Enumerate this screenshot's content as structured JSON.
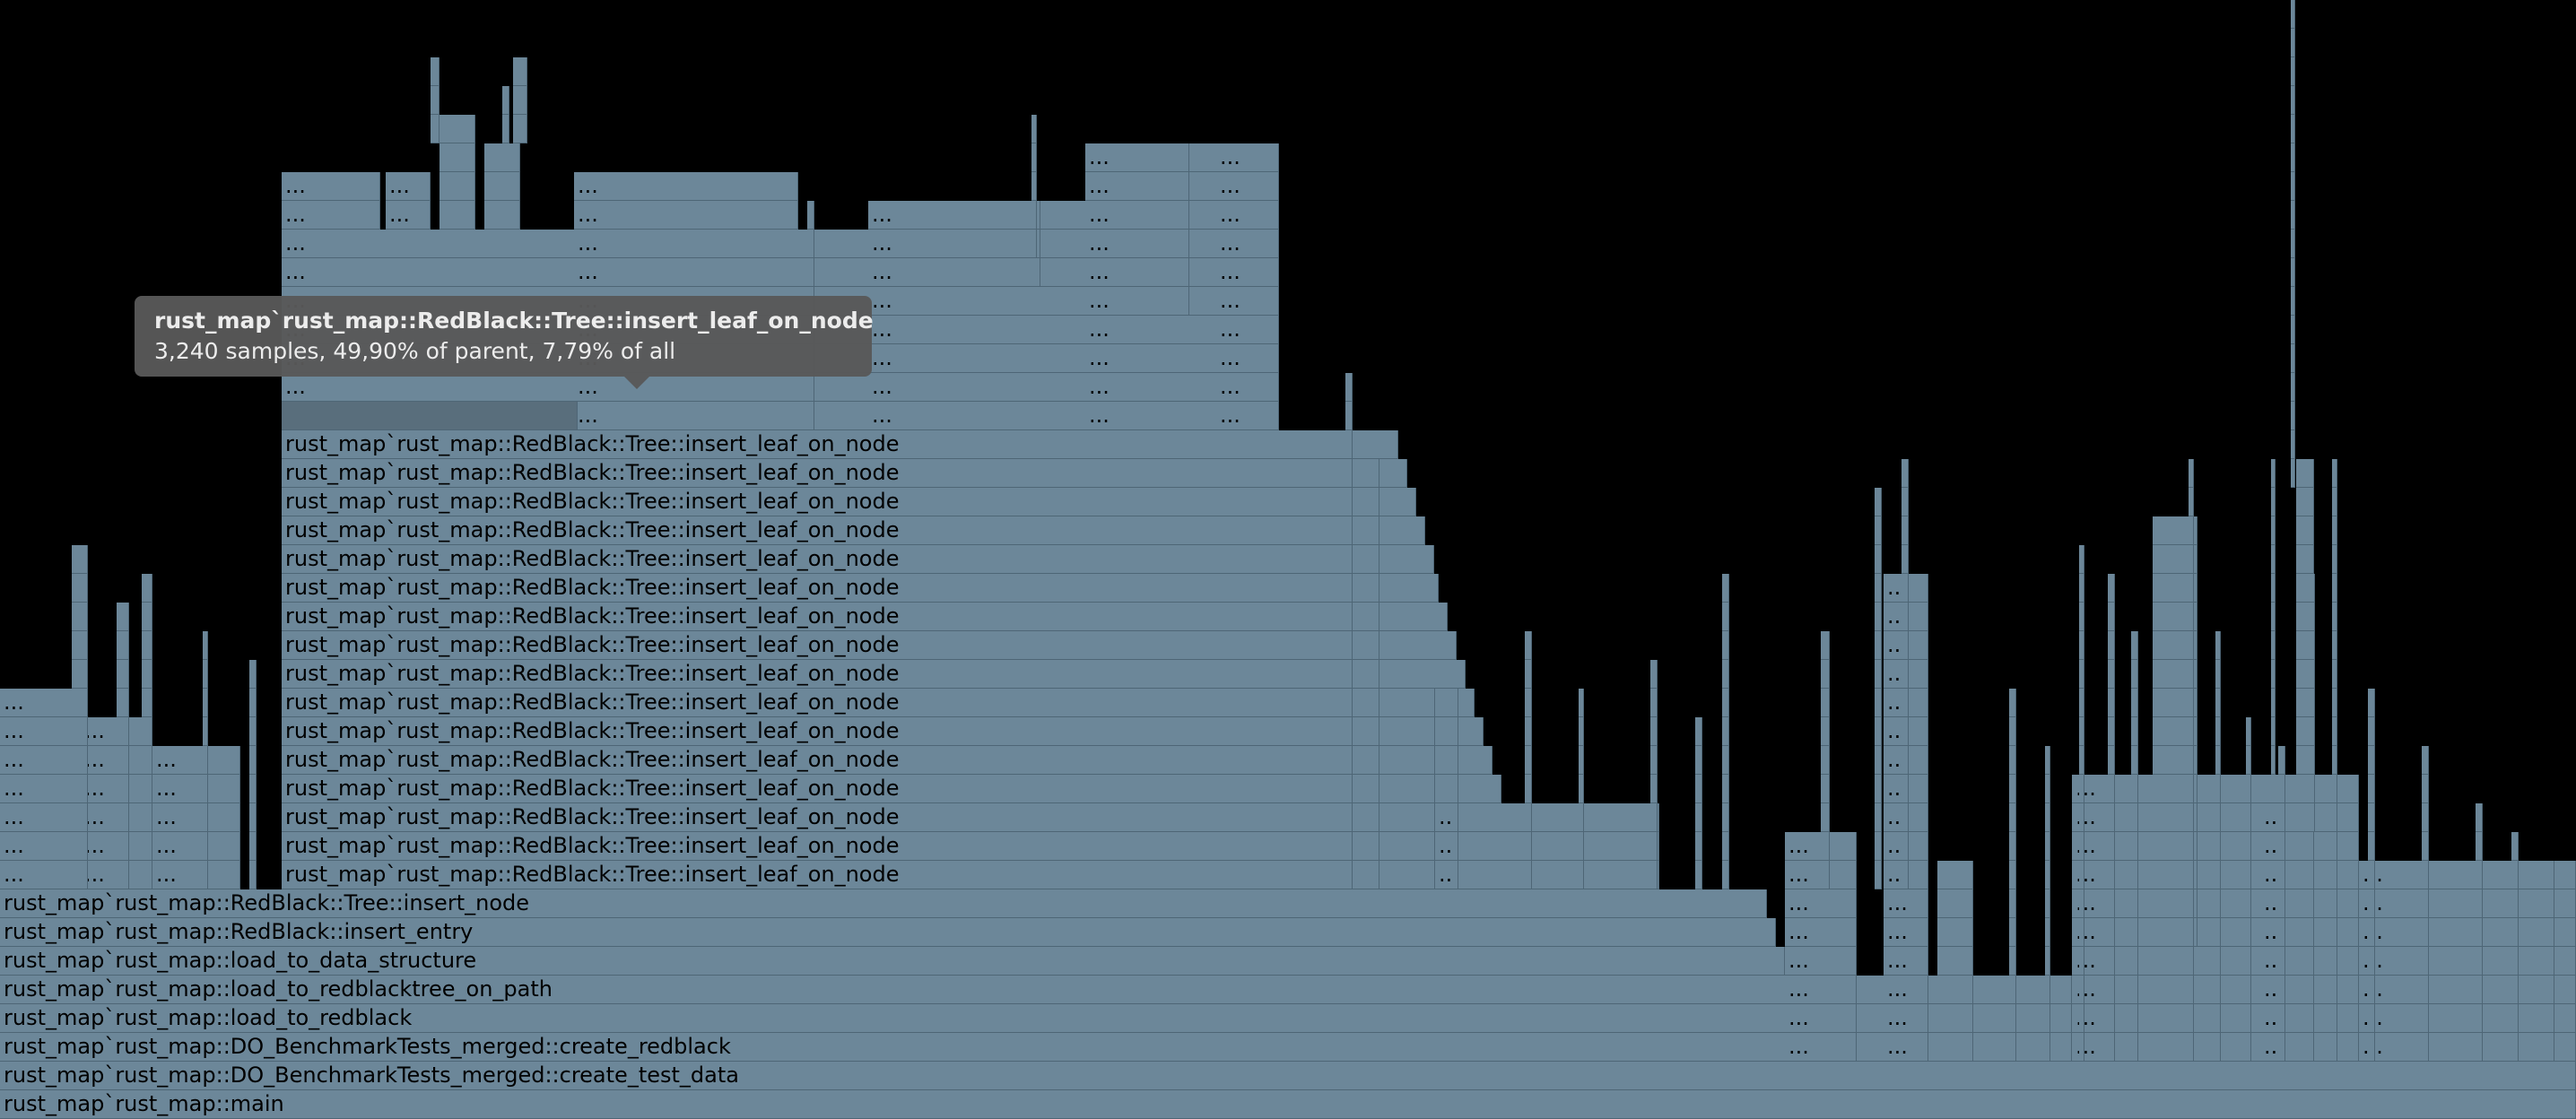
{
  "flamegraph": {
    "colors": {
      "frame": "#6c8799",
      "frame_highlight": "#596e7c",
      "background": "#000000",
      "tooltip": "#585858"
    },
    "tooltip": {
      "title": "rust_map`rust_map::RedBlack::Tree::insert_leaf_on_node",
      "stats": "3,240 samples, 49,90% of parent, 7,79% of all"
    },
    "ellipsis": "...",
    "base_stack": [
      "rust_map`rust_map::main",
      "rust_map`rust_map::DO_BenchmarkTests_merged::create_test_data",
      "rust_map`rust_map::DO_BenchmarkTests_merged::create_redblack",
      "rust_map`rust_map::load_to_redblack",
      "rust_map`rust_map::load_to_redblacktree_on_path",
      "rust_map`rust_map::load_to_data_structure",
      "rust_map`rust_map::RedBlack::insert_entry",
      "rust_map`rust_map::RedBlack::Tree::insert_node"
    ],
    "recursive_label": "rust_map`rust_map::RedBlack::Tree::insert_leaf_on_node",
    "recursive_count": 16
  }
}
